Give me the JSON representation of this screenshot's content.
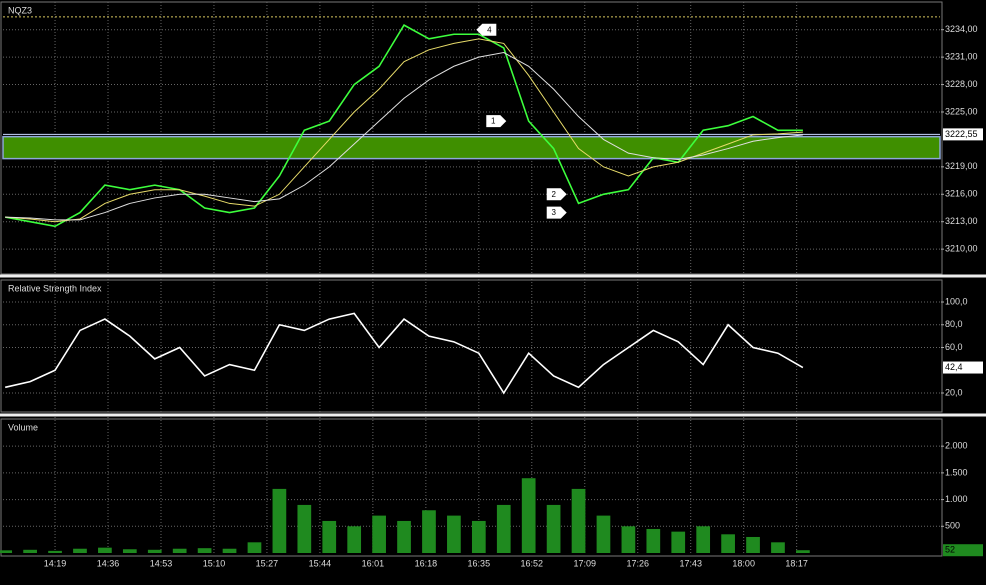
{
  "chart_data": [
    {
      "type": "line",
      "title": "NQZ3",
      "x": [
        843,
        851,
        859,
        867,
        875,
        883,
        891,
        899,
        907,
        915,
        923,
        931,
        939,
        947,
        955,
        963,
        971,
        979,
        987,
        995,
        1003,
        1011,
        1019,
        1027,
        1035,
        1043,
        1051,
        1059,
        1067,
        1075,
        1083,
        1091,
        1099
      ],
      "series": [
        {
          "color": "#3dff3d",
          "values": [
            3213.5,
            3213,
            3212.5,
            3214,
            3217,
            3216.5,
            3217,
            3216.5,
            3214.5,
            3214,
            3214.5,
            3218,
            3223,
            3224,
            3228,
            3230,
            3234.5,
            3233,
            3233.5,
            3233.5,
            3232,
            3224,
            3221,
            3215,
            3216,
            3216.5,
            3220,
            3219.5,
            3223,
            3223.5,
            3224.5,
            3223,
            3223
          ]
        },
        {
          "color": "#e8dc6a",
          "values": [
            3213.5,
            3213.3,
            3213,
            3213.3,
            3215,
            3216,
            3216.5,
            3216.5,
            3215.8,
            3215,
            3214.7,
            3216,
            3219,
            3222,
            3225,
            3227.5,
            3230.5,
            3231.8,
            3232.5,
            3233,
            3232.5,
            3229,
            3225,
            3221,
            3219,
            3218,
            3219,
            3219.5,
            3220.5,
            3221.5,
            3222.5,
            3222.6,
            3222.8
          ]
        },
        {
          "color": "#e0e0e0",
          "values": [
            3213.5,
            3213.4,
            3213.2,
            3213.2,
            3214,
            3215,
            3215.6,
            3216,
            3216,
            3215.6,
            3215.2,
            3215.5,
            3217,
            3219,
            3221.5,
            3224,
            3226.5,
            3228.5,
            3230,
            3231,
            3231.5,
            3230,
            3227.5,
            3224.5,
            3222,
            3220.5,
            3220,
            3219.8,
            3220.3,
            3221,
            3221.8,
            3222.2,
            3222.5
          ]
        }
      ],
      "xlim": [
        842.3,
        1143
      ],
      "ylim": [
        3207.5,
        3236.7
      ],
      "yticks": [
        {
          "value": 3234,
          "label": "3234,00"
        },
        {
          "value": 3231,
          "label": "3231,00"
        },
        {
          "value": 3228,
          "label": "3228,00"
        },
        {
          "value": 3225,
          "label": "3225,00"
        },
        {
          "value": 3219,
          "label": "3219,00"
        },
        {
          "value": 3216,
          "label": "3216,00"
        },
        {
          "value": 3213,
          "label": "3213,00"
        },
        {
          "value": 3210,
          "label": "3210,00"
        }
      ],
      "zone": [
        3219.9,
        3222.3
      ],
      "high_line": 3235.4,
      "last_value": {
        "value": 3222.55,
        "label": "3222,55"
      },
      "annotations": [
        {
          "label": "4",
          "x": 997.4,
          "y": 3234,
          "direction": "left"
        },
        {
          "label": "1",
          "x": 1000.6,
          "y": 3224,
          "direction": "right"
        },
        {
          "label": "2",
          "x": 1020,
          "y": 3216,
          "direction": "right"
        },
        {
          "label": "3",
          "x": 1020,
          "y": 3214,
          "direction": "right"
        }
      ],
      "grid": true
    },
    {
      "type": "line",
      "title": "Relative Strength Index",
      "x": [
        843,
        851,
        859,
        867,
        875,
        883,
        891,
        899,
        907,
        915,
        923,
        931,
        939,
        947,
        955,
        963,
        971,
        979,
        987,
        995,
        1003,
        1011,
        1019,
        1027,
        1035,
        1043,
        1051,
        1059,
        1067,
        1075,
        1083,
        1091,
        1099
      ],
      "series": [
        {
          "color": "#ffffff",
          "values": [
            25,
            30,
            40,
            75,
            85,
            70,
            50,
            60,
            35,
            45,
            40,
            80,
            75,
            85,
            90,
            60,
            85,
            70,
            65,
            55,
            20,
            55,
            35,
            25,
            45,
            60,
            75,
            65,
            45,
            80,
            60,
            55,
            42.4
          ]
        }
      ],
      "xlim": [
        842.3,
        1143
      ],
      "ylim": [
        3.3,
        117.6
      ],
      "yticks": [
        {
          "value": 100,
          "label": "100,0"
        },
        {
          "value": 80,
          "label": "80,0"
        },
        {
          "value": 60,
          "label": "60,0"
        },
        {
          "value": 20,
          "label": "20,0"
        }
      ],
      "last_value": {
        "value": 42.4,
        "label": "42,4"
      },
      "grid": true
    },
    {
      "type": "bar",
      "title": "Volume",
      "x": [
        843,
        851,
        859,
        867,
        875,
        883,
        891,
        899,
        907,
        915,
        923,
        931,
        939,
        947,
        955,
        963,
        971,
        979,
        987,
        995,
        1003,
        1011,
        1019,
        1027,
        1035,
        1043,
        1051,
        1059,
        1067,
        1075,
        1083,
        1091,
        1099
      ],
      "values": [
        50,
        60,
        40,
        80,
        100,
        70,
        60,
        80,
        90,
        80,
        200,
        1200,
        900,
        600,
        500,
        700,
        600,
        800,
        700,
        600,
        900,
        1400,
        900,
        1200,
        700,
        500,
        450,
        400,
        500,
        350,
        300,
        200,
        52
      ],
      "color": "#1f8a1f",
      "xlim": [
        842.3,
        1143
      ],
      "ylim": [
        0,
        2490
      ],
      "yticks": [
        {
          "value": 2000,
          "label": "2.000"
        },
        {
          "value": 1500,
          "label": "1.500"
        },
        {
          "value": 1000,
          "label": "1.000"
        },
        500
      ],
      "xticks": [
        {
          "value": 859,
          "label": "14:19"
        },
        {
          "value": 876,
          "label": "14:36"
        },
        {
          "value": 893,
          "label": "14:53"
        },
        {
          "value": 910,
          "label": "15:10"
        },
        {
          "value": 927,
          "label": "15:27"
        },
        {
          "value": 944,
          "label": "15:44"
        },
        {
          "value": 961,
          "label": "16:01"
        },
        {
          "value": 978,
          "label": "16:18"
        },
        {
          "value": 995,
          "label": "16:35"
        },
        {
          "value": 1012,
          "label": "16:52"
        },
        {
          "value": 1029,
          "label": "17:09"
        },
        {
          "value": 1046,
          "label": "17:26"
        },
        {
          "value": 1063,
          "label": "17:43"
        },
        {
          "value": 1080,
          "label": "18:00"
        },
        {
          "value": 1097,
          "label": "18:17"
        }
      ],
      "last_value": {
        "value": 52,
        "label": "52"
      },
      "grid": true
    }
  ]
}
